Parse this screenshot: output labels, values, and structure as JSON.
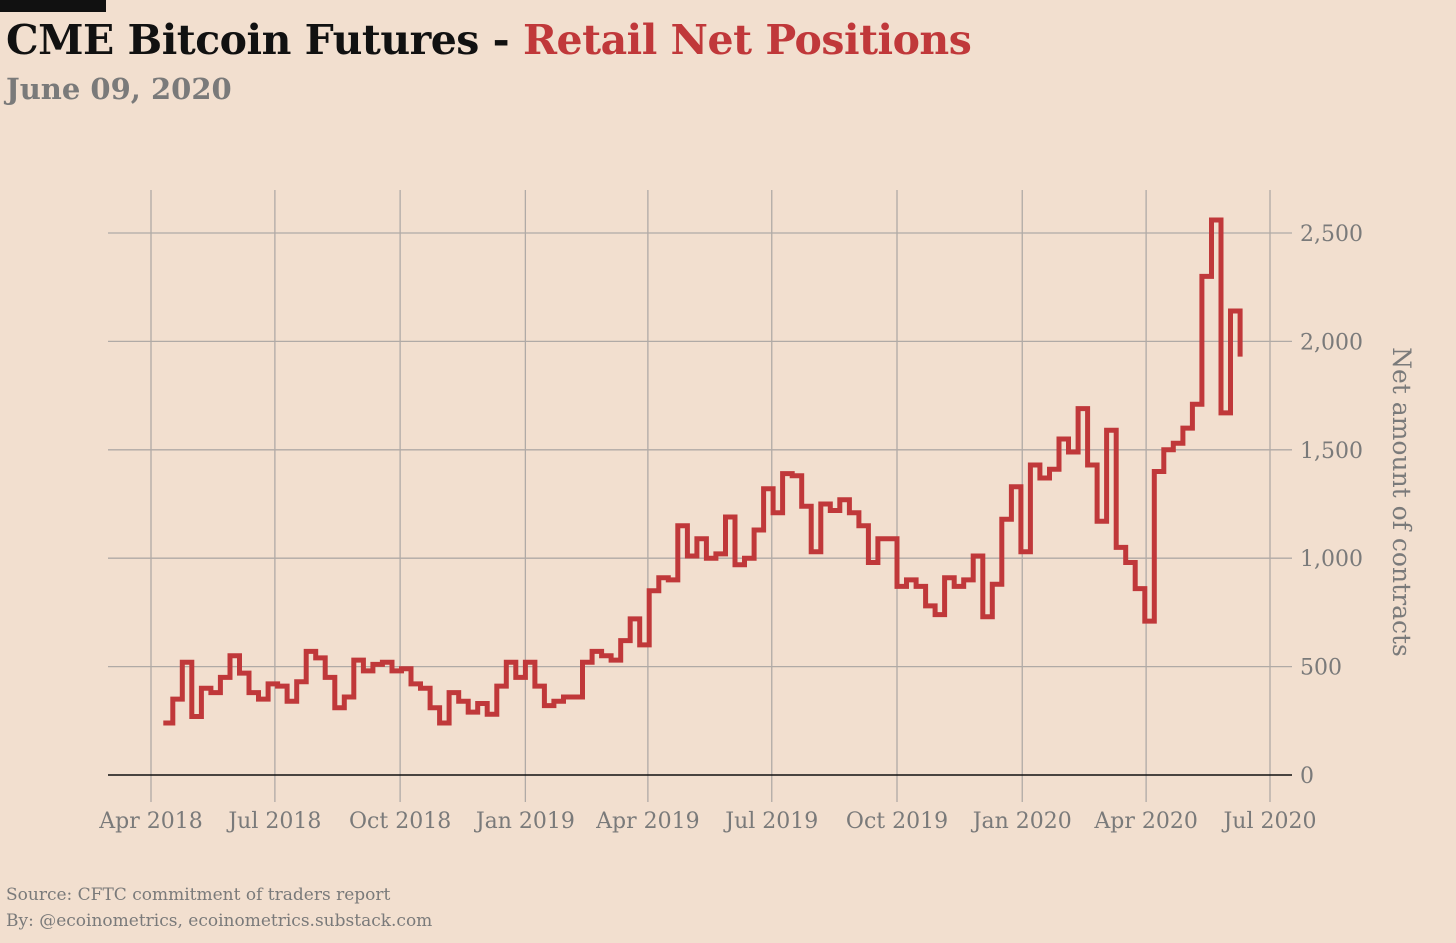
{
  "header": {
    "title_main": "CME Bitcoin Futures - ",
    "title_accent": "Retail Net Positions",
    "subtitle": "June 09, 2020"
  },
  "footer": {
    "source": "Source: CFTC commitment of traders report",
    "byline": "By: @ecoinometrics, ecoinometrics.substack.com"
  },
  "colors": {
    "background": "#f2dfcf",
    "line": "#c0383a",
    "grid": "#b0aaa6",
    "text_muted": "#7a7a7a"
  },
  "chart_data": {
    "type": "line",
    "step": true,
    "title": "CME Bitcoin Futures - Retail Net Positions",
    "ylabel": "Net amount of contracts",
    "xlabel": "",
    "ylim": [
      0,
      2600
    ],
    "y_ticks": [
      0,
      500,
      1000,
      1500,
      2000,
      2500
    ],
    "y_tick_labels": [
      "0",
      "500",
      "1,000",
      "1,500",
      "2,000",
      "2,500"
    ],
    "x_ticks": [
      "2018-04-01",
      "2018-07-01",
      "2018-10-01",
      "2019-01-01",
      "2019-04-01",
      "2019-07-01",
      "2019-10-01",
      "2020-01-01",
      "2020-04-01",
      "2020-07-01"
    ],
    "x_tick_labels": [
      "Apr 2018",
      "Jul 2018",
      "Oct 2018",
      "Jan 2019",
      "Apr 2019",
      "Jul 2019",
      "Oct 2019",
      "Jan 2020",
      "Apr 2020",
      "Jul 2020"
    ],
    "grid": true,
    "series": [
      {
        "x": [
          "2018-04-10",
          "2018-04-17",
          "2018-04-24",
          "2018-05-01",
          "2018-05-08",
          "2018-05-15",
          "2018-05-22",
          "2018-05-29",
          "2018-06-05",
          "2018-06-12",
          "2018-06-19",
          "2018-06-26",
          "2018-07-03",
          "2018-07-10",
          "2018-07-17",
          "2018-07-24",
          "2018-07-31",
          "2018-08-07",
          "2018-08-14",
          "2018-08-21",
          "2018-08-28",
          "2018-09-04",
          "2018-09-11",
          "2018-09-18",
          "2018-09-25",
          "2018-10-02",
          "2018-10-09",
          "2018-10-16",
          "2018-10-23",
          "2018-10-30",
          "2018-11-06",
          "2018-11-13",
          "2018-11-20",
          "2018-11-27",
          "2018-12-04",
          "2018-12-11",
          "2018-12-18",
          "2018-12-25",
          "2019-01-01",
          "2019-01-08",
          "2019-01-15",
          "2019-01-22",
          "2019-01-29",
          "2019-02-05",
          "2019-02-12",
          "2019-02-19",
          "2019-02-26",
          "2019-03-05",
          "2019-03-12",
          "2019-03-19",
          "2019-03-26",
          "2019-04-02",
          "2019-04-09",
          "2019-04-16",
          "2019-04-23",
          "2019-04-30",
          "2019-05-07",
          "2019-05-14",
          "2019-05-21",
          "2019-05-28",
          "2019-06-04",
          "2019-06-11",
          "2019-06-18",
          "2019-06-25",
          "2019-07-02",
          "2019-07-09",
          "2019-07-16",
          "2019-07-23",
          "2019-07-30",
          "2019-08-06",
          "2019-08-13",
          "2019-08-20",
          "2019-08-27",
          "2019-09-03",
          "2019-09-10",
          "2019-09-17",
          "2019-09-24",
          "2019-10-01",
          "2019-10-08",
          "2019-10-15",
          "2019-10-22",
          "2019-10-29",
          "2019-11-05",
          "2019-11-12",
          "2019-11-19",
          "2019-11-26",
          "2019-12-03",
          "2019-12-10",
          "2019-12-17",
          "2019-12-24",
          "2019-12-31",
          "2020-01-07",
          "2020-01-14",
          "2020-01-21",
          "2020-01-28",
          "2020-02-04",
          "2020-02-11",
          "2020-02-18",
          "2020-02-25",
          "2020-03-03",
          "2020-03-10",
          "2020-03-17",
          "2020-03-24",
          "2020-03-31",
          "2020-04-07",
          "2020-04-14",
          "2020-04-21",
          "2020-04-28",
          "2020-05-05",
          "2020-05-12",
          "2020-05-19",
          "2020-05-26",
          "2020-06-02",
          "2020-06-09"
        ],
        "y": [
          240,
          350,
          520,
          270,
          400,
          380,
          450,
          550,
          470,
          380,
          350,
          420,
          410,
          340,
          430,
          570,
          540,
          450,
          310,
          360,
          530,
          480,
          510,
          520,
          480,
          490,
          420,
          400,
          310,
          240,
          380,
          340,
          290,
          330,
          280,
          410,
          520,
          450,
          520,
          410,
          320,
          340,
          360,
          360,
          520,
          570,
          550,
          530,
          620,
          720,
          600,
          850,
          910,
          900,
          1150,
          1010,
          1090,
          1000,
          1020,
          1190,
          970,
          1000,
          1130,
          1320,
          1210,
          1390,
          1380,
          1240,
          1030,
          1250,
          1220,
          1270,
          1210,
          1150,
          980,
          1090,
          1090,
          870,
          900,
          870,
          780,
          740,
          910,
          870,
          900,
          1010,
          730,
          880,
          1180,
          1330,
          1030,
          1430,
          1370,
          1410,
          1550,
          1490,
          1690,
          1430,
          1170,
          1590,
          1050,
          980,
          860,
          710,
          1400,
          1500,
          1530,
          1600,
          1710,
          2300,
          2560,
          1670,
          2140,
          1930
        ]
      }
    ]
  }
}
